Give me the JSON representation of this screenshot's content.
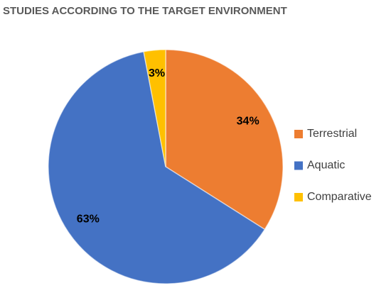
{
  "chart_data": {
    "type": "pie",
    "title": "STUDIES ACCORDING TO THE TARGET ENVIRONMENT",
    "categories": [
      "Terrestrial",
      "Aquatic",
      "Comparative"
    ],
    "values": [
      34,
      63,
      3
    ],
    "value_labels": [
      "34%",
      "63%",
      "3%"
    ],
    "colors": [
      "#ed7d31",
      "#4472c4",
      "#ffc000"
    ],
    "legend": "right"
  }
}
